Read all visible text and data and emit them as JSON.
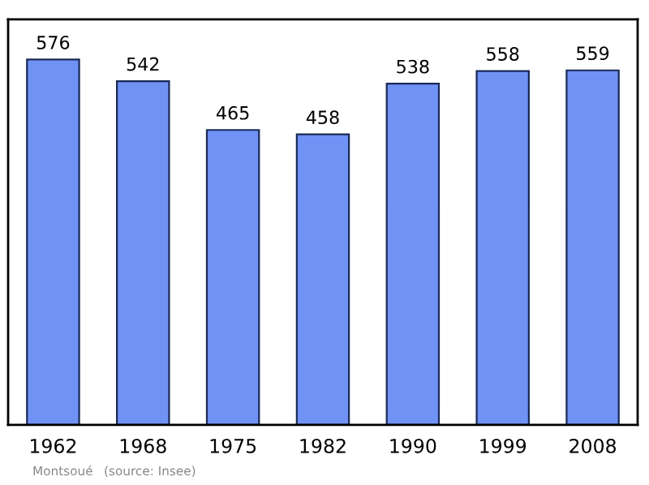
{
  "chart_data": {
    "type": "bar",
    "categories": [
      "1962",
      "1968",
      "1975",
      "1982",
      "1990",
      "1999",
      "2008"
    ],
    "values": [
      576,
      542,
      465,
      458,
      538,
      558,
      559
    ],
    "color": "#7092f5",
    "data_labels": true,
    "grid": false,
    "legend": false,
    "annotations": [
      "Montsoué",
      "(source: Insee)"
    ]
  }
}
